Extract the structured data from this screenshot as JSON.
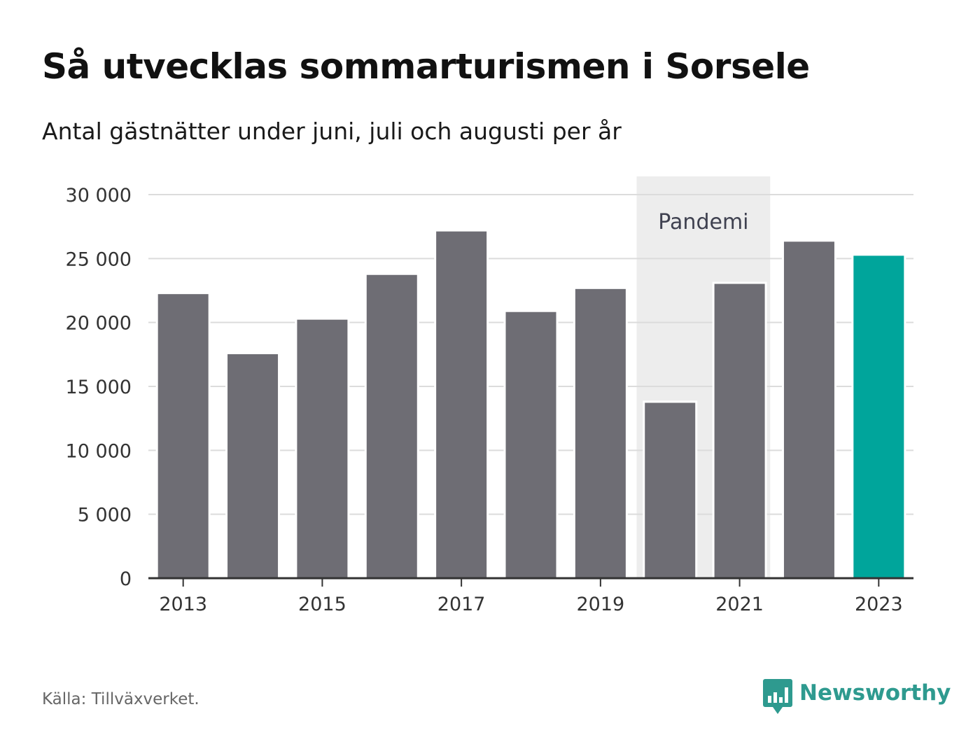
{
  "header": {
    "title": "Så utvecklas sommarturismen i Sorsele",
    "subtitle": "Antal gästnätter under juni, juli och augusti per år"
  },
  "footer": {
    "source": "Källa: Tillväxverket.",
    "brand": "Newsworthy",
    "brand_icon": "bar-chart-speech-bubble-icon"
  },
  "colors": {
    "bar": "#6e6d74",
    "highlight": "#00a59b",
    "band": "#ededed",
    "grid": "#dcdcdc",
    "axis": "#333333",
    "brand": "#2e9a8f"
  },
  "chart_data": {
    "type": "bar",
    "categories": [
      "2013",
      "2014",
      "2015",
      "2016",
      "2017",
      "2018",
      "2019",
      "2020",
      "2021",
      "2022",
      "2023"
    ],
    "values": [
      22300,
      17600,
      20300,
      23800,
      27200,
      20900,
      22700,
      13800,
      23100,
      26400,
      25300
    ],
    "highlight_category": "2023",
    "xticks": [
      "2013",
      "2015",
      "2017",
      "2019",
      "2021",
      "2023"
    ],
    "yticks": [
      0,
      5000,
      10000,
      15000,
      20000,
      25000,
      30000
    ],
    "ytick_labels": [
      "0",
      "5 000",
      "10 000",
      "15 000",
      "20 000",
      "25 000",
      "30 000"
    ],
    "ylim": [
      0,
      30000
    ],
    "grid": true,
    "annotations": [
      {
        "type": "band",
        "from": "2020",
        "to": "2021",
        "label": "Pandemi"
      }
    ]
  }
}
